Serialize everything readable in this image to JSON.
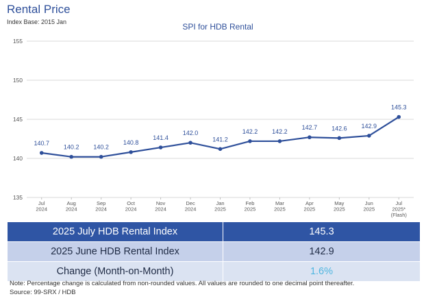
{
  "page": {
    "title": "Rental Price",
    "subtitle": "Index Base: 2015 Jan"
  },
  "chart_data": {
    "type": "line",
    "title": "SPI for HDB Rental",
    "xlabel": "",
    "ylabel": "",
    "ylim": [
      135,
      155
    ],
    "yticks": [
      135,
      140,
      145,
      150,
      155
    ],
    "grid": "horizontal",
    "colors": {
      "line": "#2e4f9a",
      "grid": "#d9d9d9"
    },
    "categories": [
      [
        "Jul",
        "2024"
      ],
      [
        "Aug",
        "2024"
      ],
      [
        "Sep",
        "2024"
      ],
      [
        "Oct",
        "2024"
      ],
      [
        "Nov",
        "2024"
      ],
      [
        "Dec",
        "2024"
      ],
      [
        "Jan",
        "2025"
      ],
      [
        "Feb",
        "2025"
      ],
      [
        "Mar",
        "2025"
      ],
      [
        "Apr",
        "2025"
      ],
      [
        "May",
        "2025"
      ],
      [
        "Jun",
        "2025"
      ],
      [
        "Jul",
        "2025*",
        "(Flash)"
      ]
    ],
    "series": [
      {
        "values": [
          140.7,
          140.2,
          140.2,
          140.8,
          141.4,
          142.0,
          141.2,
          142.2,
          142.2,
          142.7,
          142.6,
          142.9,
          145.3
        ],
        "data_labels": [
          "140.7",
          "140.2",
          "140.2",
          "140.8",
          "141.4",
          "142.0",
          "141.2",
          "142.2",
          "142.2",
          "142.7",
          "142.6",
          "142.9",
          "145.3"
        ]
      }
    ]
  },
  "summary": {
    "rows": [
      {
        "label": "2025 July HDB Rental Index",
        "value": "145.3"
      },
      {
        "label": "2025 June HDB Rental Index",
        "value": "142.9"
      },
      {
        "label": "Change (Month-on-Month)",
        "value": "1.6%"
      }
    ],
    "colors": {
      "current_bg": "#2f55a4",
      "prev_bg": "#c5d0ea",
      "change_bg": "#dbe3f2",
      "change_value": "#4fb6e0"
    }
  },
  "footer": {
    "note": "Note: Percentage change is calculated from non-rounded values.  All values are rounded to one decimal point thereafter.",
    "source": "Source: 99-SRX / HDB"
  }
}
